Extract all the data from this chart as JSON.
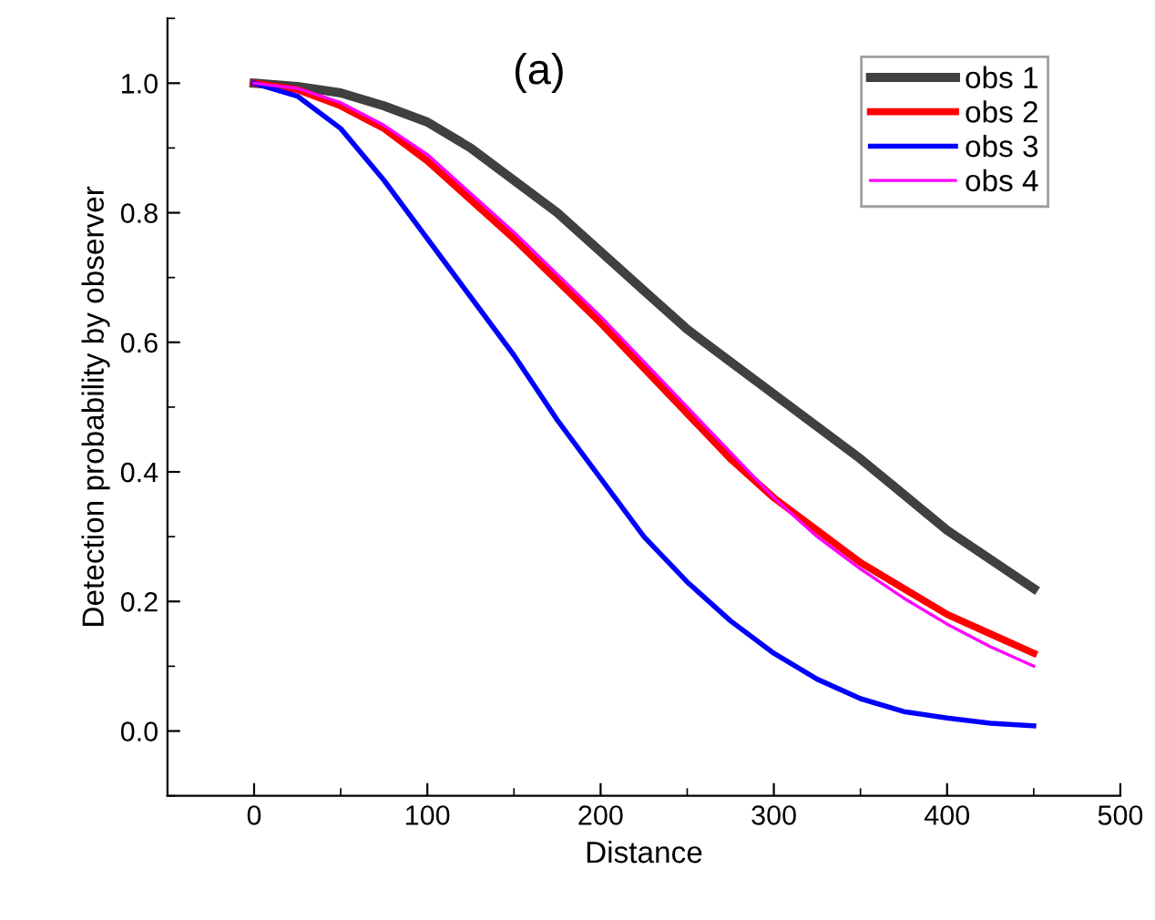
{
  "chart_data": {
    "type": "line",
    "xlabel": "Distance",
    "ylabel": "Detection probability by observer",
    "annotations": [
      "(a)"
    ],
    "xlim": [
      -50,
      500
    ],
    "xticks": [
      0,
      100,
      200,
      300,
      400,
      500
    ],
    "ylim": [
      -0.1,
      1.1
    ],
    "yticks": [
      {
        "value": 0.0,
        "label": "0.0"
      },
      0.2,
      0.4,
      0.6,
      0.8,
      {
        "value": 1.0,
        "label": "1.0"
      }
    ],
    "x": [
      0,
      25,
      50,
      75,
      100,
      125,
      150,
      175,
      200,
      225,
      250,
      275,
      300,
      325,
      350,
      375,
      400,
      425,
      450
    ],
    "series": [
      {
        "name": "obs 1",
        "color": "#404040",
        "values": [
          1.0,
          0.995,
          0.985,
          0.965,
          0.94,
          0.9,
          0.85,
          0.8,
          0.74,
          0.68,
          0.62,
          0.57,
          0.52,
          0.47,
          0.42,
          0.365,
          0.31,
          0.265,
          0.22
        ]
      },
      {
        "name": "obs 2",
        "color": "#ff0000",
        "values": [
          1.0,
          0.99,
          0.965,
          0.93,
          0.88,
          0.82,
          0.76,
          0.695,
          0.63,
          0.56,
          0.49,
          0.42,
          0.36,
          0.31,
          0.26,
          0.22,
          0.18,
          0.15,
          0.12
        ]
      },
      {
        "name": "obs 3",
        "color": "#0000ff",
        "values": [
          1.0,
          0.98,
          0.93,
          0.85,
          0.76,
          0.67,
          0.58,
          0.48,
          0.39,
          0.3,
          0.23,
          0.17,
          0.12,
          0.08,
          0.05,
          0.03,
          0.02,
          0.012,
          0.008
        ]
      },
      {
        "name": "obs 4",
        "color": "#ff00ff",
        "values": [
          1.0,
          0.992,
          0.97,
          0.935,
          0.89,
          0.83,
          0.77,
          0.705,
          0.64,
          0.57,
          0.5,
          0.43,
          0.36,
          0.3,
          0.25,
          0.205,
          0.165,
          0.13,
          0.1
        ]
      }
    ],
    "legend": "top right",
    "grid": false
  }
}
